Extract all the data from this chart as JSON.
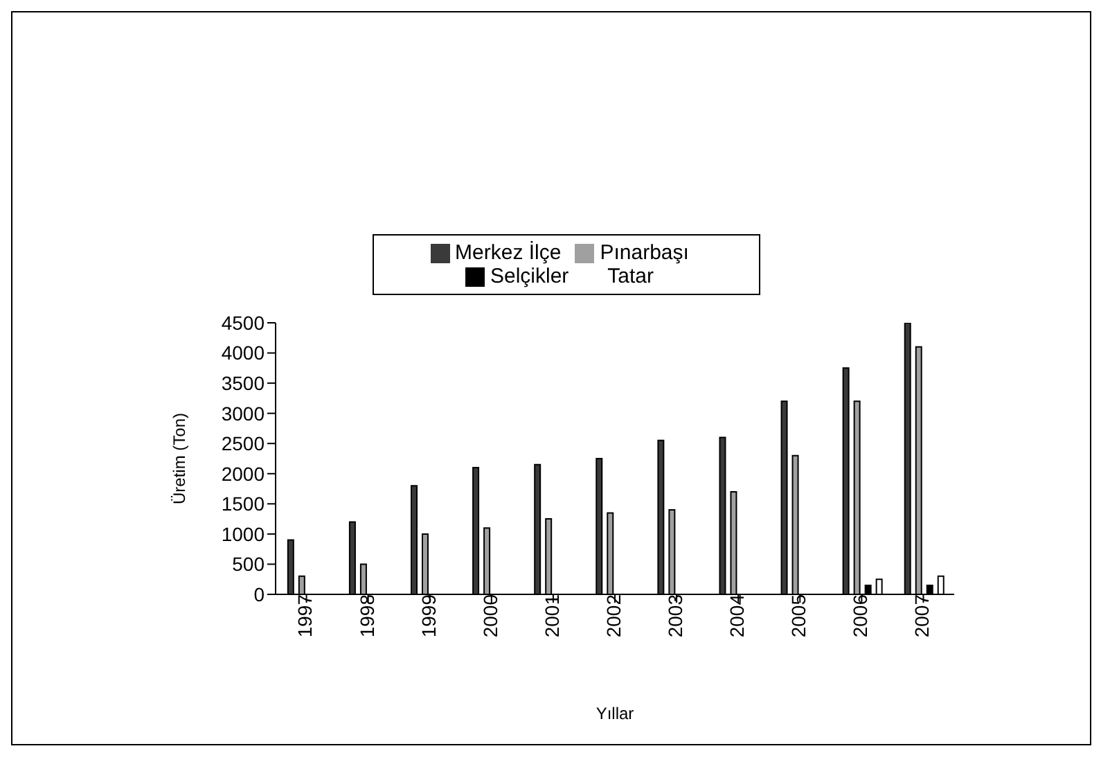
{
  "chart_data": {
    "type": "bar",
    "xlabel": "Yıllar",
    "ylabel": "Üretim (Ton)",
    "categories": [
      "1997",
      "1998",
      "1999",
      "2000",
      "2001",
      "2002",
      "2003",
      "2004",
      "2005",
      "2006",
      "2007"
    ],
    "series": [
      {
        "name": "Merkez İlçe",
        "color": "#3a3a3a",
        "values": [
          900,
          1200,
          1800,
          2100,
          2150,
          2250,
          2550,
          2600,
          3200,
          3750,
          4500
        ]
      },
      {
        "name": "Pınarbaşı",
        "color": "#a0a0a0",
        "values": [
          300,
          500,
          1000,
          1100,
          1250,
          1350,
          1400,
          1700,
          2300,
          3200,
          4100
        ]
      },
      {
        "name": "Selçikler",
        "color": "#000000",
        "values": [
          null,
          null,
          null,
          null,
          null,
          null,
          null,
          null,
          null,
          150,
          150
        ]
      },
      {
        "name": "Tatar",
        "color": "#ffffff",
        "values": [
          null,
          null,
          null,
          null,
          null,
          null,
          null,
          null,
          null,
          250,
          300
        ]
      }
    ],
    "ylim": [
      0,
      4500
    ],
    "yticks": [
      0,
      500,
      1000,
      1500,
      2000,
      2500,
      3000,
      3500,
      4000,
      4500
    ],
    "grid": false,
    "legend": "top"
  }
}
